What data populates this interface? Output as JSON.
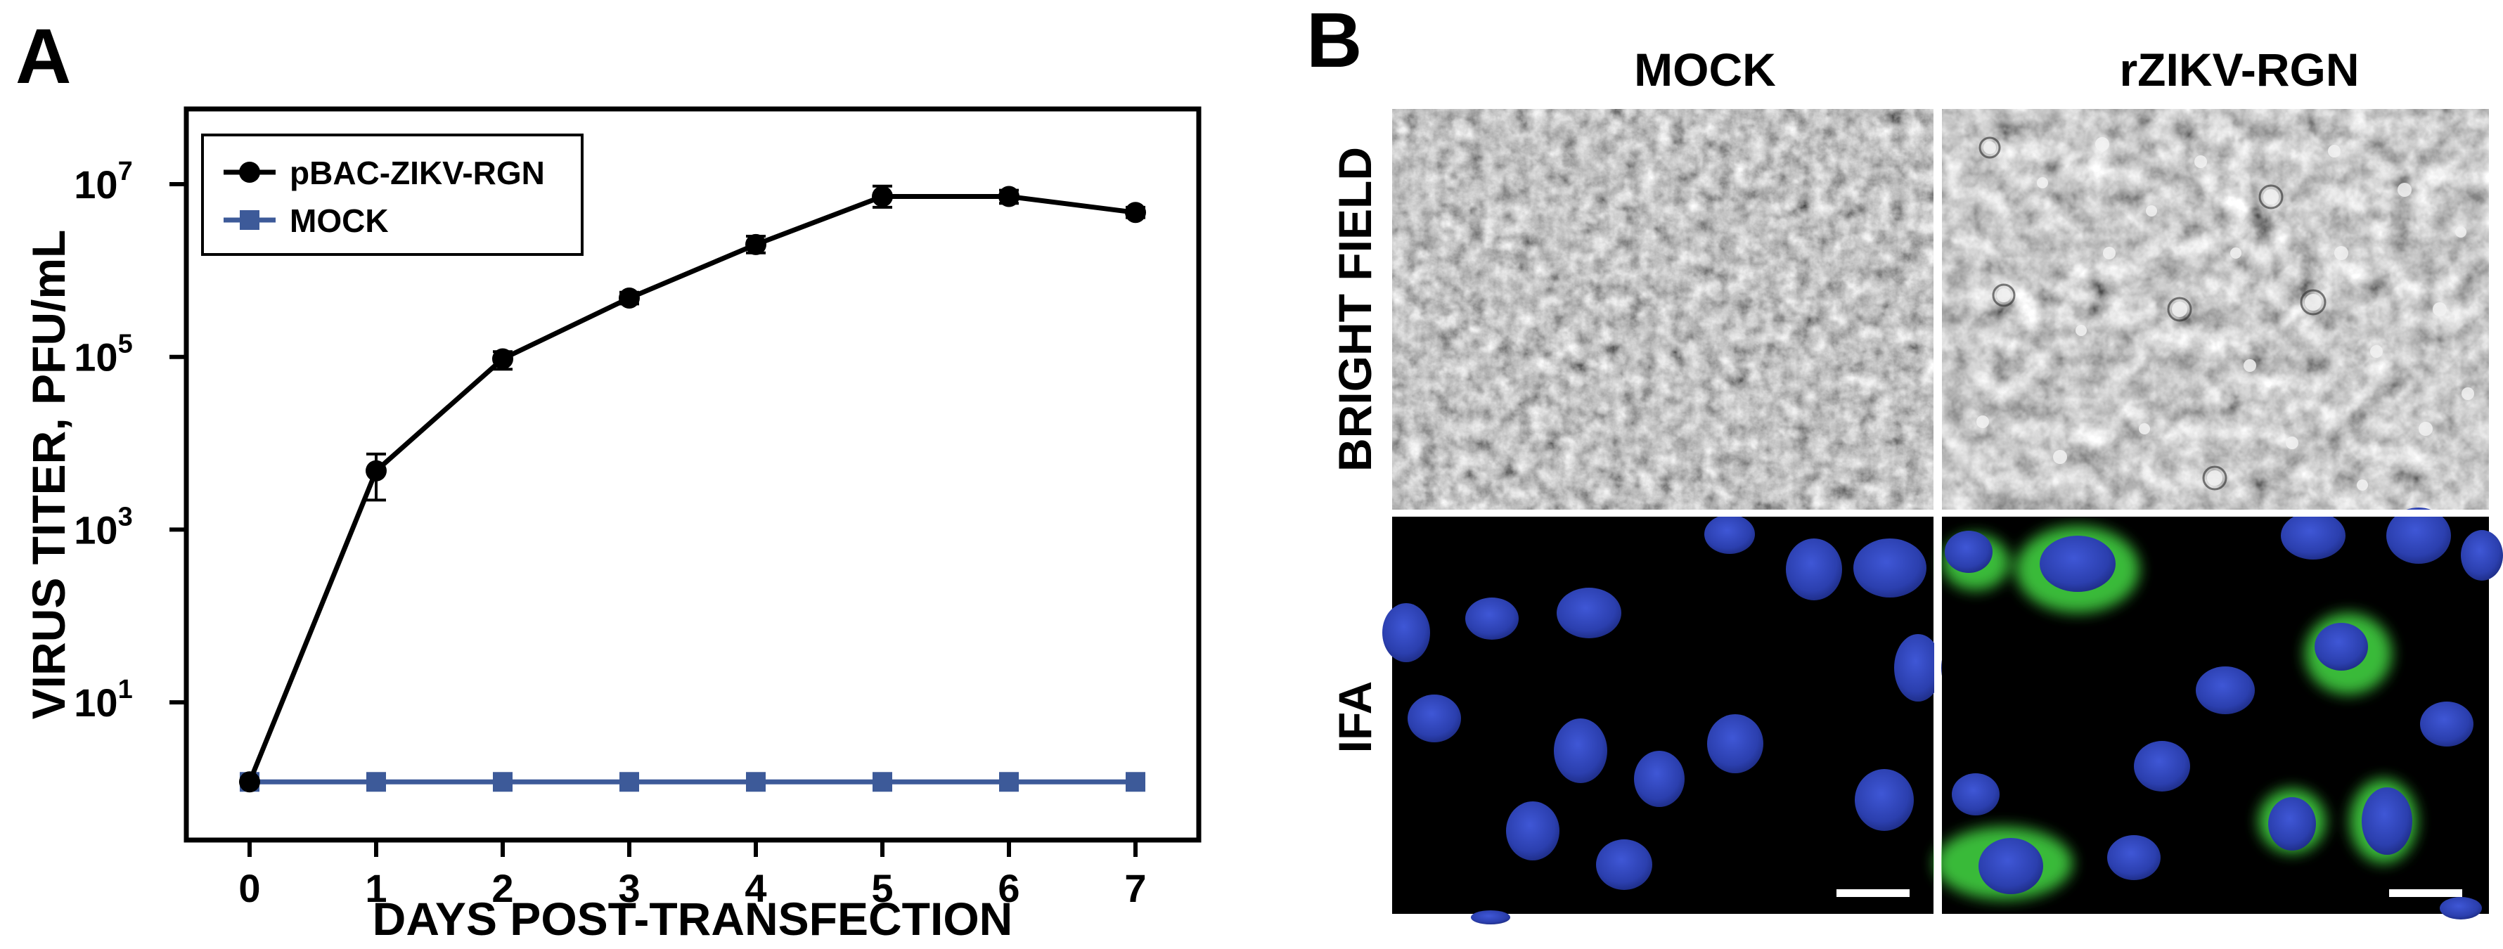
{
  "panel_a": {
    "letter": "A",
    "chart_data": {
      "type": "line",
      "title": "",
      "xlabel": "DAYS POST-TRANSFECTION",
      "ylabel": "VIRUS TITER, PFU/mL",
      "x": [
        0,
        1,
        2,
        3,
        4,
        5,
        6,
        7
      ],
      "xlim": [
        -0.5,
        7.5
      ],
      "y_scale": "log",
      "ylim": [
        1,
        10000000
      ],
      "ytick_values": [
        10,
        1000,
        100000,
        10000000
      ],
      "ytick_labels": [
        {
          "base": "10",
          "exp": "1"
        },
        {
          "base": "10",
          "exp": "3"
        },
        {
          "base": "10",
          "exp": "5"
        },
        {
          "base": "10",
          "exp": "7"
        }
      ],
      "grid": false,
      "legend_position": "top-left",
      "series": [
        {
          "name": "pBAC-ZIKV-RGN",
          "color": "#000000",
          "marker": "circle",
          "values": [
            1.2,
            4800,
            95000,
            480000,
            2000000,
            7200000,
            7200000,
            4700000
          ],
          "err_low": [
            1.2,
            2200,
            72000,
            410000,
            1600000,
            5400000,
            6000000,
            4100000
          ],
          "err_high": [
            1.2,
            7500,
            115000,
            560000,
            2500000,
            9500000,
            8500000,
            5400000
          ]
        },
        {
          "name": "MOCK",
          "color": "#3d5a99",
          "marker": "square",
          "values": [
            1.2,
            1.2,
            1.2,
            1.2,
            1.2,
            1.2,
            1.2,
            1.2
          ]
        }
      ]
    }
  },
  "panel_b": {
    "letter": "B",
    "columns": [
      "MOCK",
      "rZIKV-RGN"
    ],
    "rows": [
      "BRIGHT FIELD",
      "IFA"
    ],
    "colors": {
      "nucleus": "#2e42b8",
      "virus": "#3ec43c"
    }
  }
}
